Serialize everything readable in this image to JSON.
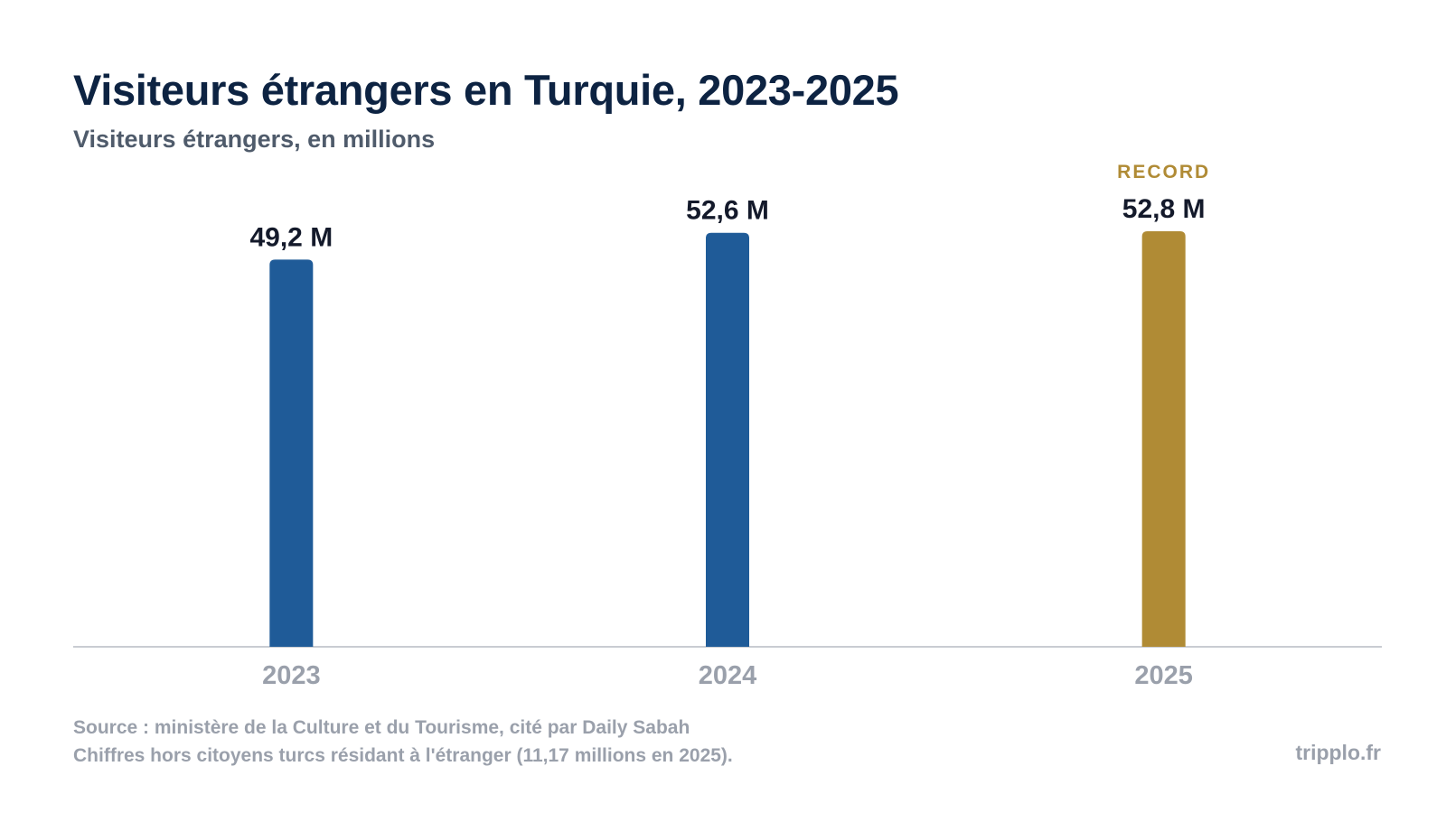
{
  "title": "Visiteurs étrangers en Turquie, 2023-2025",
  "subtitle": "Visiteurs étrangers, en millions",
  "footer": {
    "source": "Source : ministère de la Culture et du Tourisme, cité par Daily Sabah",
    "note": "Chiffres hors citoyens turcs résidant à l'étranger (11,17 millions en 2025).",
    "brand": "tripplo.fr"
  },
  "colors": {
    "primary_bar": "#1f5b98",
    "highlight_bar": "#b08b35",
    "title": "#0d2342",
    "value_label": "#141a2b",
    "axis_label": "#9aa0ab",
    "baseline": "#c9ccd2"
  },
  "chart_data": {
    "type": "bar",
    "categories": [
      "2023",
      "2024",
      "2025"
    ],
    "values": [
      49.2,
      52.6,
      52.8
    ],
    "value_labels": [
      "49,2 M",
      "52,6 M",
      "52,8 M"
    ],
    "highlight_index": 2,
    "highlight_label": "RECORD",
    "ylim": [
      0,
      52.8
    ],
    "grid": false,
    "legend": "none"
  }
}
